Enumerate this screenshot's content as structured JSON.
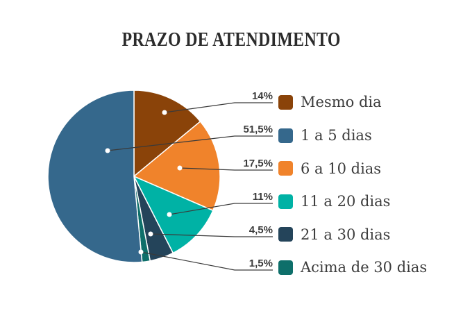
{
  "page": {
    "background": "#FFFFFF"
  },
  "chart_data": {
    "type": "pie",
    "title": "PRAZO DE ATENDIMENTO",
    "legend_position": "right",
    "value_suffix": "%",
    "direction": "clockwise",
    "start_angle_deg": 0,
    "slices": [
      {
        "label": "Mesmo dia",
        "value": 14,
        "display_value": "14%",
        "color": "#8A4309"
      },
      {
        "label": "1 a 5 dias",
        "value": 51.5,
        "display_value": "51,5%",
        "color": "#35688C"
      },
      {
        "label": "6 a 10 dias",
        "value": 17.5,
        "display_value": "17,5%",
        "color": "#F0832B"
      },
      {
        "label": "11 a 20 dias",
        "value": 11,
        "display_value": "11%",
        "color": "#00B2A5"
      },
      {
        "label": "21 a 30 dias",
        "value": 4.5,
        "display_value": "4,5%",
        "color": "#24445A"
      },
      {
        "label": "Acima de 30 dias",
        "value": 1.5,
        "display_value": "1,5%",
        "color": "#0E6F6A"
      }
    ],
    "pie_order": [
      0,
      2,
      3,
      4,
      5,
      1
    ]
  },
  "colors": {
    "title_text": "#2B2B2B",
    "legend_text": "#3C3C3C",
    "leader_line": "#3A3A3A",
    "marker_dot": "#FFFFFF",
    "slice_border": "#FFFFFF"
  }
}
